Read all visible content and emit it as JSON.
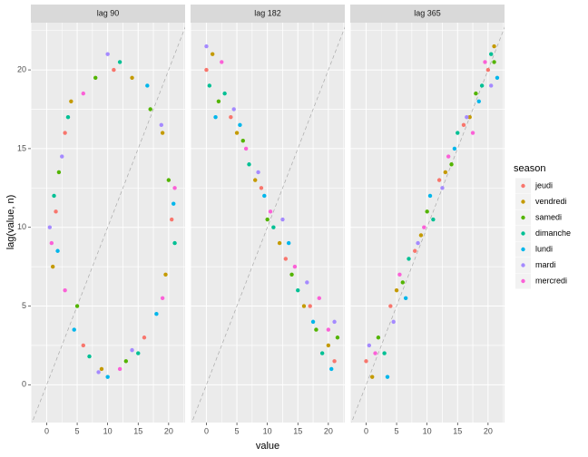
{
  "chart_data": {
    "type": "scatter",
    "x_label": "value",
    "y_label": "lag(value, n)",
    "legend_title": "season",
    "legend_position": "right",
    "grid": true,
    "diagonal": true,
    "xlim": [
      -2.6,
      22.7
    ],
    "ylim": [
      -2.4,
      23
    ],
    "xticks": [
      0,
      5,
      10,
      15,
      20
    ],
    "yticks": [
      0,
      5,
      10,
      15,
      20
    ],
    "seasons": [
      {
        "name": "jeudi",
        "color": "#F8766D"
      },
      {
        "name": "vendredi",
        "color": "#C49A00"
      },
      {
        "name": "samedi",
        "color": "#53B400"
      },
      {
        "name": "dimanche",
        "color": "#00C094"
      },
      {
        "name": "lundi",
        "color": "#00B6EB"
      },
      {
        "name": "mardi",
        "color": "#A58AFF"
      },
      {
        "name": "mercredi",
        "color": "#FB61D7"
      }
    ],
    "panels": [
      {
        "title": "lag 90",
        "series": [
          {
            "x": [
              20.5,
              11,
              1.5,
              6,
              16,
              3
            ],
            "y": [
              10.5,
              20,
              11,
              2.5,
              3,
              16
            ]
          },
          {
            "x": [
              19,
              14,
              4,
              9,
              19.5,
              1
            ],
            "y": [
              16,
              19.5,
              18,
              1,
              7,
              7.5
            ]
          },
          {
            "x": [
              8,
              20,
              2,
              13,
              17,
              5
            ],
            "y": [
              19.5,
              13,
              13.5,
              1.5,
              17.5,
              5
            ]
          },
          {
            "x": [
              12,
              21,
              3.5,
              7,
              15,
              1.2
            ],
            "y": [
              20.5,
              9,
              17,
              1.8,
              2,
              12
            ]
          },
          {
            "x": [
              16.5,
              20.8,
              1.8,
              10,
              18,
              4.5
            ],
            "y": [
              19,
              11.5,
              8.5,
              0.5,
              4.5,
              3.5
            ]
          },
          {
            "x": [
              10,
              18.8,
              0.5,
              8.5,
              14,
              2.5
            ],
            "y": [
              21,
              16.5,
              10,
              0.8,
              2.2,
              14.5
            ]
          },
          {
            "x": [
              6,
              21,
              3,
              12,
              19,
              0.8
            ],
            "y": [
              18.5,
              12.5,
              6,
              1,
              5.5,
              9
            ]
          }
        ]
      },
      {
        "title": "lag 182",
        "series": [
          {
            "x": [
              0,
              4,
              9,
              13,
              17,
              21
            ],
            "y": [
              20,
              17,
              12.5,
              8,
              5,
              1.5
            ]
          },
          {
            "x": [
              1,
              5,
              8,
              12,
              16,
              20
            ],
            "y": [
              21,
              16,
              13,
              9,
              5,
              2.5
            ]
          },
          {
            "x": [
              2,
              6,
              10,
              14,
              18,
              21.5
            ],
            "y": [
              18,
              15.5,
              10.5,
              7,
              3.5,
              3
            ]
          },
          {
            "x": [
              0.5,
              3,
              7,
              11,
              15,
              19
            ],
            "y": [
              19,
              18.5,
              14,
              10,
              6,
              2
            ]
          },
          {
            "x": [
              1.5,
              5.5,
              9.5,
              13.5,
              17.5,
              20.5
            ],
            "y": [
              17,
              16.5,
              12,
              9,
              4,
              1
            ]
          },
          {
            "x": [
              0,
              4.5,
              8.5,
              12.5,
              16.5,
              21
            ],
            "y": [
              21.5,
              17.5,
              13.5,
              10.5,
              6.5,
              4
            ]
          },
          {
            "x": [
              2.5,
              6.5,
              10.5,
              14.5,
              18.5,
              20
            ],
            "y": [
              20.5,
              15,
              11,
              7.5,
              5.5,
              3.5
            ]
          }
        ]
      },
      {
        "title": "lag 365",
        "series": [
          {
            "x": [
              0,
              4,
              8,
              12,
              16,
              20
            ],
            "y": [
              1.5,
              5,
              8.5,
              13,
              16.5,
              20
            ]
          },
          {
            "x": [
              1,
              5,
              9,
              13,
              17,
              21
            ],
            "y": [
              0.5,
              6,
              9.5,
              13.5,
              17,
              21.5
            ]
          },
          {
            "x": [
              2,
              6,
              10,
              14,
              18,
              21
            ],
            "y": [
              3,
              6.5,
              11,
              14,
              18.5,
              20.5
            ]
          },
          {
            "x": [
              3,
              7,
              11,
              15,
              19,
              20.5
            ],
            "y": [
              2,
              8,
              10.5,
              16,
              19,
              21
            ]
          },
          {
            "x": [
              3.5,
              6.5,
              10.5,
              14.5,
              18.5,
              21.5
            ],
            "y": [
              0.5,
              5.5,
              12,
              15,
              18,
              19.5
            ]
          },
          {
            "x": [
              0.5,
              4.5,
              8.5,
              12.5,
              16.5,
              20.5
            ],
            "y": [
              2.5,
              4,
              9,
              12.5,
              17,
              19
            ]
          },
          {
            "x": [
              1.5,
              5.5,
              9.5,
              13.5,
              17.5,
              19.5
            ],
            "y": [
              2,
              7,
              10,
              14.5,
              16,
              20.5
            ]
          }
        ]
      }
    ]
  }
}
